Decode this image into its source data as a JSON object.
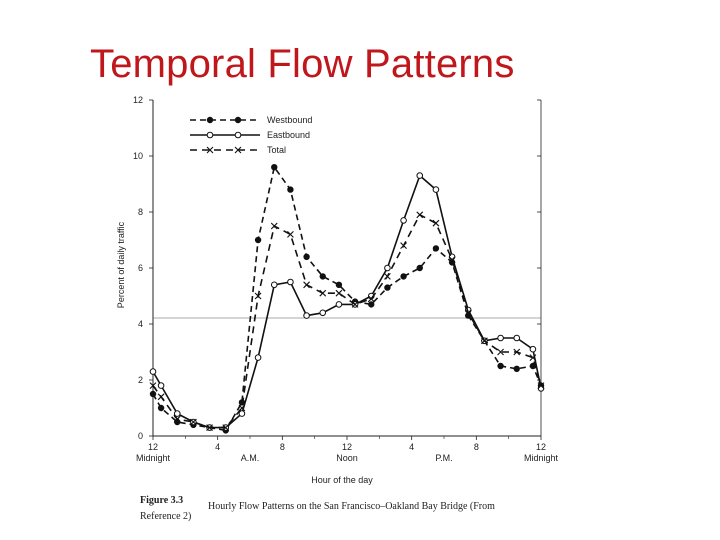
{
  "slide": {
    "title": "Temporal Flow Patterns"
  },
  "chart_data": {
    "type": "line",
    "title": "",
    "xlabel": "Hour of the day",
    "ylabel": "Percent of daily traffic",
    "ylim": [
      0,
      12
    ],
    "xlim": [
      0,
      24
    ],
    "grid": false,
    "legend_position": "top-left",
    "y_ticks": [
      "0",
      "2",
      "4",
      "6",
      "8",
      "10",
      "12"
    ],
    "x_ticks": [
      {
        "value": 0,
        "label": "12",
        "sub": "Midnight"
      },
      {
        "value": 4,
        "label": "4",
        "sub": ""
      },
      {
        "value": 8,
        "label": "8",
        "sub": ""
      },
      {
        "value": 12,
        "label": "12",
        "sub": "Noon"
      },
      {
        "value": 16,
        "label": "4",
        "sub": ""
      },
      {
        "value": 20,
        "label": "8",
        "sub": ""
      },
      {
        "value": 24,
        "label": "12",
        "sub": "Midnight"
      }
    ],
    "period_labels": [
      {
        "value": 6,
        "text": "A.M."
      },
      {
        "value": 18,
        "text": "P.M."
      }
    ],
    "x": [
      0,
      0.5,
      1.5,
      2.5,
      3.5,
      4.5,
      5.5,
      6.5,
      7.5,
      8.5,
      9.5,
      10.5,
      11.5,
      12.5,
      13.5,
      14.5,
      15.5,
      16.5,
      17.5,
      18.5,
      19.5,
      20.5,
      21.5,
      22.5,
      23.5,
      24
    ],
    "series": [
      {
        "name": "Westbound",
        "marker": "filled-circle",
        "dash": "6,4",
        "values": [
          1.5,
          1.0,
          0.5,
          0.4,
          0.3,
          0.2,
          1.2,
          7.0,
          9.6,
          8.8,
          6.4,
          5.7,
          5.4,
          4.8,
          4.7,
          5.3,
          5.7,
          6.0,
          6.7,
          6.2,
          4.3,
          3.4,
          2.5,
          2.4,
          2.5,
          1.8
        ]
      },
      {
        "name": "Eastbound",
        "marker": "open-circle",
        "dash": "none",
        "values": [
          2.3,
          1.8,
          0.8,
          0.5,
          0.3,
          0.3,
          0.8,
          2.8,
          5.4,
          5.5,
          4.3,
          4.4,
          4.7,
          4.7,
          5.0,
          6.0,
          7.7,
          9.3,
          8.8,
          6.4,
          4.5,
          3.4,
          3.5,
          3.5,
          3.1,
          1.7
        ]
      },
      {
        "name": "Total",
        "marker": "x",
        "dash": "7,5",
        "values": [
          1.8,
          1.4,
          0.6,
          0.5,
          0.3,
          0.3,
          1.0,
          5.0,
          7.5,
          7.2,
          5.4,
          5.1,
          5.1,
          4.7,
          4.9,
          5.7,
          6.8,
          7.9,
          7.6,
          6.3,
          4.4,
          3.4,
          3.0,
          3.0,
          2.8,
          1.8
        ]
      }
    ],
    "caption": {
      "label": "Figure 3.3",
      "text": "Hourly Flow Patterns on the San Francisco–Oakland Bay Bridge (From",
      "text2": "Reference 2)"
    }
  }
}
